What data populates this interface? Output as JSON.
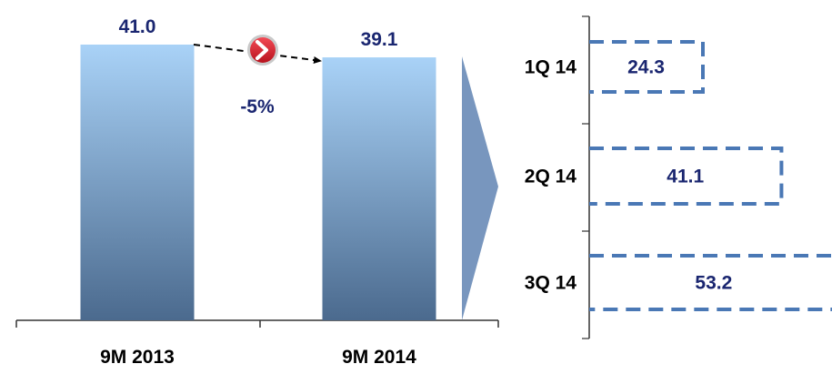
{
  "chart_data": [
    {
      "type": "bar",
      "categories": [
        "9M 2013",
        "9M 2014"
      ],
      "values": [
        41.0,
        39.1
      ],
      "value_labels": [
        "41.0",
        "39.1"
      ],
      "change_label": "-5%",
      "colors": {
        "bar_top": "#a9d2f7",
        "bar_bottom": "#4b6a8e",
        "value_text": "#1a2670",
        "change_text": "#1a2670",
        "category_text": "#000000"
      }
    },
    {
      "type": "bar",
      "orientation": "horizontal",
      "categories": [
        "1Q 14",
        "2Q 14",
        "3Q 14"
      ],
      "values": [
        24.3,
        41.1,
        53.2
      ],
      "value_labels": [
        "24.3",
        "41.1",
        "53.2"
      ],
      "style": "dashed-outline",
      "colors": {
        "outline": "#4a78b5",
        "value_text": "#1a2670",
        "category_text": "#000000"
      }
    }
  ],
  "colors": {
    "connector_arrow": "#7896be",
    "badge_red": "#e0212e"
  }
}
